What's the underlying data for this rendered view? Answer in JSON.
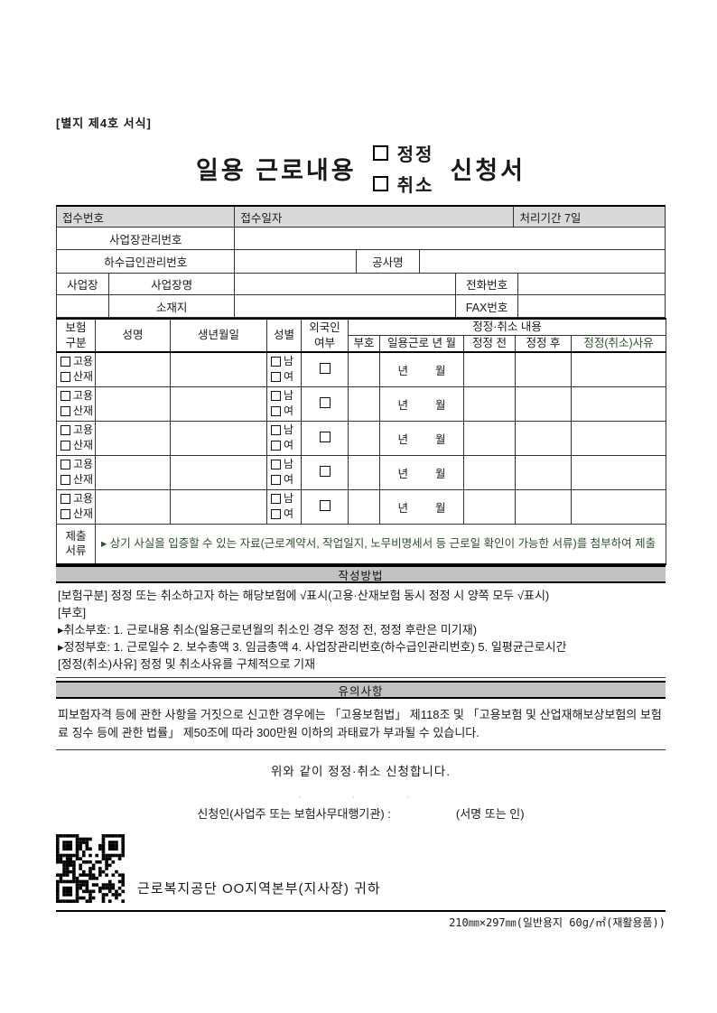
{
  "page": {
    "form_label": "[별지 제4호 서식]",
    "title": {
      "prefix": "일용 근로내용",
      "option1": "정정",
      "option2": "취소",
      "suffix": "신청서"
    }
  },
  "top": {
    "receipt_no": "접수번호",
    "receipt_date": "접수일자",
    "processing_period": "처리기간 7일",
    "workplace_mgmt_no": "사업장관리번호",
    "subcontractor_mgmt_no": "하수급인관리번호",
    "construction_name": "공사명",
    "workplace": "사업장",
    "workplace_name": "사업장명",
    "location": "소재지",
    "phone": "전화번호",
    "fax": "FAX번호"
  },
  "table": {
    "row_count": 5,
    "headers": {
      "insurance_1": "보험",
      "insurance_2": "구분",
      "name": "성명",
      "birthdate": "생년월일",
      "gender": "성별",
      "foreigner_1": "외국인",
      "foreigner_2": "여부",
      "correction_group": "정정·취소 내용",
      "code": "부호",
      "work_year_month": "일용근로 년 월",
      "before": "정정 전",
      "after": "정정 후",
      "reason": "정정(취소)사유"
    },
    "row_labels": {
      "emp": "고용",
      "ind": "산재",
      "male": "남",
      "female": "여",
      "year": "년",
      "month": "월"
    },
    "submit_label_1": "제출",
    "submit_label_2": "서류",
    "submit_text": "▸ 상기 사실을 입증할 수 있는 자료(근로계약서, 작업일지, 노무비명세서 등 근로일 확인이 가능한 서류)를 첨부하여 제출"
  },
  "sections": {
    "howto_title": "작성방법",
    "howto_lines": [
      "[보험구분] 정정 또는 취소하고자 하는 해당보험에 √표시(고용·산재보험 동시 정정 시 양쪽 모두 √표시)",
      "[부호]",
      "▸취소부호: 1. 근로내용 취소(일용근로년월의 취소인 경우 정정 전, 정정 후란은 미기재)",
      "▸정정부호: 1. 근로일수  2. 보수총액 3. 임금총액 4. 사업장관리번호(하수급인관리번호) 5. 일평균근로시간",
      "[정정(취소)사유] 정정 및 취소사유를 구체적으로 기재"
    ],
    "notice_title": "유의사항",
    "notice_text": "피보험자격 등에 관한 사항을 거짓으로 신고한 경우에는 「고용보험법」 제118조 및 「고용보험 및 산업재해보상보험의 보험료 징수 등에 관한 법률」 제50조에 따라 300만원 이하의 과태료가 부과될 수 있습니다."
  },
  "footer": {
    "declaration": "위와 같이 정정·취소 신청합니다.",
    "date_marks": "···",
    "applicant_label": "신청인(사업주 또는 보험사무대행기관) :",
    "sign_label": "(서명 또는 인)",
    "recipient": "근로복지공단 OO지역본부(지사장) 귀하",
    "paper_spec": "210㎜×297㎜(일반용지 60g/㎡(재활용품))"
  }
}
